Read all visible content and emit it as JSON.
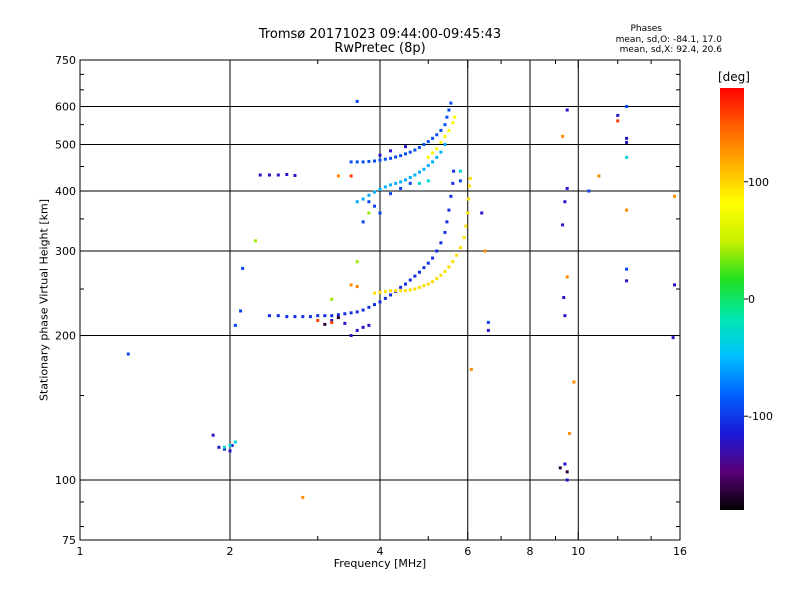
{
  "chart_data": {
    "type": "scatter",
    "title": "Tromsø 20171023 09:44:00-09:45:43",
    "subtitle": "RwPretec (8p)",
    "stats": {
      "heading": "Phases",
      "line1": "mean, sd,O: -84.1, 17.0",
      "line2": "mean, sd,X: 92.4, 20.6"
    },
    "xlabel": "Frequency [MHz]",
    "ylabel": "Stationary phase Virtual Height [km]",
    "x_scale": "log",
    "y_scale": "log",
    "xlim": [
      1,
      16
    ],
    "ylim": [
      75,
      750
    ],
    "x_ticks": [
      {
        "value": 1,
        "label": "1"
      },
      {
        "value": 2,
        "label": "2"
      },
      {
        "value": 4,
        "label": "4"
      },
      {
        "value": 6,
        "label": "6"
      },
      {
        "value": 8,
        "label": "8"
      },
      {
        "value": 10,
        "label": "10"
      },
      {
        "value": 16,
        "label": "16"
      }
    ],
    "x_grid": [
      2,
      4,
      6,
      8,
      10
    ],
    "y_ticks": [
      {
        "value": 75,
        "label": "75"
      },
      {
        "value": 100,
        "label": "100"
      },
      {
        "value": 200,
        "label": "200"
      },
      {
        "value": 300,
        "label": "300"
      },
      {
        "value": 400,
        "label": "400"
      },
      {
        "value": 500,
        "label": "500"
      },
      {
        "value": 600,
        "label": "600"
      },
      {
        "value": 750,
        "label": "750"
      }
    ],
    "y_grid": [
      100,
      200,
      300,
      400,
      500,
      600
    ],
    "grid": true,
    "colorbar": {
      "unit": "[deg]",
      "range": [
        -180,
        180
      ],
      "ticks": [
        {
          "value": 100,
          "label": "100"
        },
        {
          "value": 0,
          "label": "0"
        },
        {
          "value": -100,
          "label": "-100"
        }
      ],
      "colors": [
        "#000000",
        "#5a0078",
        "#1a1ad8",
        "#0060ff",
        "#00c0ff",
        "#00e8b0",
        "#20e020",
        "#c8f000",
        "#ffff00",
        "#ffb000",
        "#ff6000",
        "#ff0000"
      ]
    },
    "series": [
      {
        "phase": -105,
        "points": [
          [
            2.4,
            220
          ],
          [
            2.5,
            220
          ],
          [
            2.6,
            219
          ],
          [
            2.7,
            219
          ],
          [
            2.8,
            219
          ],
          [
            2.9,
            219
          ],
          [
            3.0,
            220
          ],
          [
            3.1,
            220
          ],
          [
            3.2,
            220
          ],
          [
            3.3,
            221
          ],
          [
            3.4,
            222
          ],
          [
            3.5,
            223
          ],
          [
            3.6,
            224
          ],
          [
            3.7,
            226
          ],
          [
            3.8,
            229
          ],
          [
            3.9,
            232
          ],
          [
            4.0,
            235
          ],
          [
            4.1,
            239
          ],
          [
            4.2,
            243
          ],
          [
            4.3,
            247
          ],
          [
            4.4,
            252
          ],
          [
            4.5,
            256
          ],
          [
            4.6,
            261
          ],
          [
            4.7,
            266
          ],
          [
            4.8,
            271
          ],
          [
            4.9,
            277
          ],
          [
            5.0,
            283
          ],
          [
            5.1,
            290
          ],
          [
            5.2,
            300
          ],
          [
            5.3,
            312
          ],
          [
            5.4,
            328
          ],
          [
            5.45,
            345
          ],
          [
            5.5,
            365
          ],
          [
            5.55,
            390
          ],
          [
            5.6,
            415
          ],
          [
            5.62,
            440
          ]
        ]
      },
      {
        "phase": -90,
        "points": [
          [
            3.5,
            460
          ],
          [
            3.6,
            460
          ],
          [
            3.7,
            460
          ],
          [
            3.8,
            461
          ],
          [
            3.9,
            462
          ],
          [
            4.0,
            464
          ],
          [
            4.1,
            466
          ],
          [
            4.2,
            468
          ],
          [
            4.3,
            471
          ],
          [
            4.4,
            474
          ],
          [
            4.5,
            478
          ],
          [
            4.6,
            482
          ],
          [
            4.7,
            487
          ],
          [
            4.8,
            493
          ],
          [
            4.9,
            500
          ],
          [
            5.0,
            507
          ],
          [
            5.1,
            515
          ],
          [
            5.2,
            524
          ],
          [
            5.3,
            535
          ],
          [
            5.4,
            550
          ],
          [
            5.45,
            570
          ],
          [
            5.5,
            590
          ],
          [
            5.55,
            610
          ]
        ]
      },
      {
        "phase": -55,
        "points": [
          [
            3.6,
            380
          ],
          [
            3.7,
            385
          ],
          [
            3.8,
            392
          ],
          [
            3.9,
            398
          ],
          [
            4.0,
            403
          ],
          [
            4.1,
            408
          ],
          [
            4.2,
            412
          ],
          [
            4.3,
            415
          ],
          [
            4.4,
            418
          ],
          [
            4.5,
            422
          ],
          [
            4.6,
            427
          ],
          [
            4.7,
            432
          ],
          [
            4.8,
            438
          ],
          [
            4.9,
            444
          ],
          [
            5.0,
            452
          ],
          [
            5.1,
            460
          ],
          [
            5.2,
            470
          ],
          [
            5.3,
            482
          ],
          [
            5.4,
            500
          ]
        ]
      },
      {
        "phase": 95,
        "points": [
          [
            3.9,
            245
          ],
          [
            4.0,
            246
          ],
          [
            4.1,
            247
          ],
          [
            4.2,
            248
          ],
          [
            4.3,
            248
          ],
          [
            4.4,
            248
          ],
          [
            4.5,
            248
          ],
          [
            4.6,
            249
          ],
          [
            4.7,
            250
          ],
          [
            4.8,
            252
          ],
          [
            4.9,
            254
          ],
          [
            5.0,
            256
          ],
          [
            5.1,
            259
          ],
          [
            5.2,
            263
          ],
          [
            5.3,
            267
          ],
          [
            5.4,
            272
          ],
          [
            5.5,
            278
          ],
          [
            5.6,
            285
          ],
          [
            5.7,
            294
          ],
          [
            5.8,
            305
          ],
          [
            5.9,
            320
          ],
          [
            5.95,
            338
          ],
          [
            6.0,
            360
          ],
          [
            6.02,
            385
          ],
          [
            6.05,
            410
          ],
          [
            6.07,
            425
          ]
        ]
      },
      {
        "phase": 85,
        "points": [
          [
            5.0,
            470
          ],
          [
            5.1,
            480
          ],
          [
            5.2,
            490
          ],
          [
            5.3,
            505
          ],
          [
            5.4,
            520
          ],
          [
            5.5,
            535
          ],
          [
            5.6,
            555
          ],
          [
            5.65,
            570
          ]
        ]
      },
      {
        "phase": -120,
        "points": [
          [
            2.3,
            432
          ],
          [
            2.4,
            432
          ],
          [
            2.5,
            432
          ],
          [
            2.6,
            433
          ],
          [
            2.7,
            431
          ],
          [
            1.9,
            117
          ],
          [
            1.95,
            116
          ],
          [
            2.0,
            115
          ],
          [
            2.02,
            118
          ],
          [
            1.85,
            124
          ],
          [
            9.5,
            590
          ],
          [
            9.5,
            405
          ],
          [
            9.4,
            380
          ],
          [
            9.3,
            340
          ],
          [
            9.35,
            240
          ],
          [
            9.4,
            220
          ],
          [
            12.0,
            575
          ],
          [
            12.5,
            515
          ],
          [
            12.5,
            505
          ],
          [
            3.5,
            200
          ],
          [
            3.6,
            205
          ],
          [
            3.7,
            208
          ],
          [
            3.8,
            210
          ],
          [
            3.2,
            215
          ],
          [
            3.4,
            212
          ],
          [
            4.0,
            475
          ],
          [
            4.2,
            485
          ],
          [
            4.5,
            495
          ],
          [
            6.4,
            360
          ],
          [
            6.6,
            205
          ],
          [
            12.5,
            260
          ],
          [
            15.5,
            198
          ],
          [
            15.6,
            255
          ],
          [
            9.4,
            108
          ],
          [
            9.5,
            100
          ]
        ]
      },
      {
        "phase": -95,
        "points": [
          [
            1.25,
            183
          ],
          [
            2.05,
            210
          ],
          [
            2.1,
            225
          ],
          [
            2.12,
            276
          ],
          [
            3.8,
            380
          ],
          [
            3.9,
            372
          ],
          [
            4.0,
            360
          ],
          [
            4.2,
            395
          ],
          [
            4.4,
            405
          ],
          [
            4.6,
            415
          ],
          [
            3.6,
            615
          ],
          [
            3.7,
            345
          ],
          [
            5.8,
            420
          ],
          [
            10.5,
            400
          ],
          [
            12.5,
            600
          ],
          [
            6.6,
            213
          ],
          [
            12.5,
            275
          ]
        ]
      },
      {
        "phase": -30,
        "points": [
          [
            1.95,
            117
          ],
          [
            2.0,
            118
          ],
          [
            2.05,
            120
          ],
          [
            12.5,
            470
          ],
          [
            5.8,
            440
          ],
          [
            4.8,
            415
          ],
          [
            5.0,
            420
          ]
        ]
      },
      {
        "phase": 40,
        "points": [
          [
            2.25,
            315
          ],
          [
            3.2,
            238
          ],
          [
            3.6,
            285
          ],
          [
            3.8,
            360
          ]
        ]
      },
      {
        "phase": 130,
        "points": [
          [
            3.5,
            255
          ],
          [
            3.6,
            253
          ],
          [
            3.3,
            430
          ],
          [
            11.0,
            430
          ],
          [
            9.5,
            265
          ],
          [
            9.3,
            520
          ],
          [
            9.8,
            160
          ],
          [
            6.5,
            300
          ],
          [
            6.1,
            170
          ],
          [
            9.6,
            125
          ],
          [
            2.8,
            92
          ],
          [
            12.5,
            365
          ],
          [
            15.6,
            390
          ]
        ]
      },
      {
        "phase": 160,
        "points": [
          [
            3.2,
            213
          ],
          [
            3.0,
            215
          ],
          [
            3.5,
            430
          ],
          [
            12.0,
            560
          ]
        ]
      },
      {
        "phase": -165,
        "points": [
          [
            9.5,
            104
          ],
          [
            9.2,
            106
          ],
          [
            3.1,
            211
          ],
          [
            3.3,
            218
          ]
        ]
      }
    ]
  }
}
